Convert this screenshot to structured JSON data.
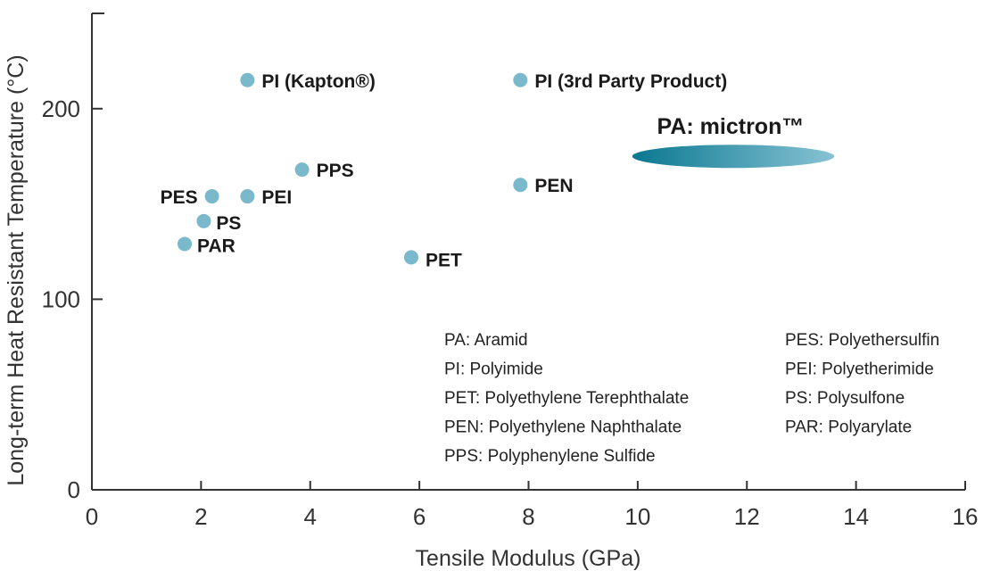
{
  "chart_data": {
    "type": "scatter",
    "xlabel": "Tensile Modulus (GPa)",
    "ylabel": "Long-term Heat Resistant Temperature (°C)",
    "xlim": [
      0,
      16
    ],
    "ylim": [
      0,
      250
    ],
    "xticks": [
      "0",
      "2",
      "4",
      "6",
      "8",
      "10",
      "12",
      "14",
      "16"
    ],
    "yticks": [
      "0",
      "100",
      "200"
    ],
    "grid": false,
    "point_color": "#7ab8cc",
    "points": [
      {
        "label": "PI (Kapton®)",
        "x": 2.85,
        "y": 215
      },
      {
        "label": "PI (3rd Party Product)",
        "x": 7.85,
        "y": 215
      },
      {
        "label": "PPS",
        "x": 3.85,
        "y": 168
      },
      {
        "label": "PES",
        "x": 2.2,
        "y": 154
      },
      {
        "label": "PEI",
        "x": 2.85,
        "y": 154
      },
      {
        "label": "PS",
        "x": 2.05,
        "y": 141
      },
      {
        "label": "PAR",
        "x": 1.7,
        "y": 129
      },
      {
        "label": "PEN",
        "x": 7.85,
        "y": 160
      },
      {
        "label": "PET",
        "x": 5.85,
        "y": 122
      }
    ],
    "highlight": {
      "label": "PA: mictron™",
      "x_range": [
        9.9,
        13.6
      ],
      "y_center": 175,
      "color_start": "#0a7890",
      "color_end": "#88c2d4"
    },
    "annotations_left": [
      "PA: Aramid",
      "PI: Polyimide",
      "PET: Polyethylene Terephthalate",
      "PEN: Polyethylene Naphthalate",
      "PPS: Polyphenylene Sulfide"
    ],
    "annotations_right": [
      "PES: Polyethersulfin",
      "PEI: Polyetherimide",
      "PS: Polysulfone",
      "PAR: Polyarylate"
    ]
  }
}
